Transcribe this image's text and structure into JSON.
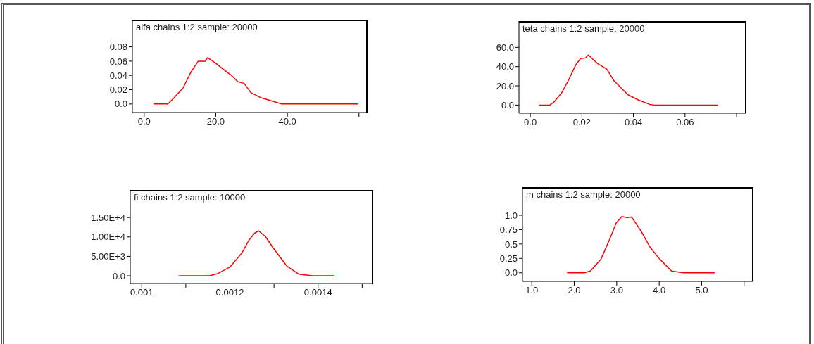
{
  "chart_data": [
    {
      "type": "line",
      "title": "alfa chains 1:2 sample: 20000",
      "color": "#ff0000",
      "x": [
        2.6,
        6.6,
        8.2,
        10.8,
        13.1,
        15.1,
        17.1,
        17.7,
        20.0,
        22.0,
        24.6,
        26.2,
        27.9,
        29.8,
        32.5,
        35.8,
        38.4,
        59.7
      ],
      "values": [
        0,
        0,
        0.008,
        0.022,
        0.045,
        0.06,
        0.06,
        0.065,
        0.057,
        0.049,
        0.039,
        0.031,
        0.029,
        0.016,
        0.009,
        0.004,
        0,
        0
      ],
      "xlim": [
        -3.3,
        62.4
      ],
      "xticks": [
        {
          "value": 0,
          "label": "0.0"
        },
        {
          "value": 20,
          "label": "20.0"
        },
        {
          "value": 40,
          "label": "40.0"
        },
        {
          "value": 60,
          "label": null
        }
      ],
      "ylim": [
        -0.012,
        0.118
      ],
      "yticks": [
        {
          "value": 0,
          "label": "0.0"
        },
        0.02,
        0.04,
        0.06,
        0.08
      ]
    },
    {
      "type": "line",
      "title": "teta chains 1:2 sample: 20000",
      "color": "#ff0000",
      "x": [
        0.0034,
        0.0076,
        0.0094,
        0.0122,
        0.0149,
        0.0177,
        0.0195,
        0.0214,
        0.0225,
        0.026,
        0.0297,
        0.0325,
        0.0361,
        0.038,
        0.0417,
        0.0463,
        0.0481,
        0.0726
      ],
      "values": [
        0,
        0,
        3.7,
        12.9,
        26.4,
        42.2,
        48.3,
        49,
        52,
        43.4,
        37.3,
        25.1,
        15.4,
        10.5,
        5.6,
        0.7,
        0,
        0
      ],
      "xlim": [
        -0.0044,
        0.0838
      ],
      "xticks": [
        {
          "value": 0,
          "label": "0.0"
        },
        0.02,
        0.04,
        0.06,
        {
          "value": 0.08,
          "label": null
        }
      ],
      "ylim": [
        -8.5,
        87.3
      ],
      "yticks": [
        {
          "value": 0,
          "label": "0.0"
        },
        {
          "value": 20,
          "label": "20.0"
        },
        {
          "value": 40,
          "label": "40.0"
        },
        {
          "value": 60,
          "label": "60.0"
        }
      ]
    },
    {
      "type": "line",
      "title": "fi chains 1:2 sample: 10000",
      "color": "#ff0000",
      "x": [
        0.001084,
        0.001154,
        0.001173,
        0.0012,
        0.001227,
        0.001243,
        0.001256,
        0.001265,
        0.001281,
        0.001297,
        0.001313,
        0.001329,
        0.001356,
        0.001388,
        0.001437
      ],
      "values": [
        0,
        0,
        600,
        2230,
        5840,
        9150,
        10960,
        11560,
        10050,
        7340,
        4940,
        2530,
        420,
        0,
        0
      ],
      "xlim": [
        0.000974,
        0.001525
      ],
      "xticks": [
        0.001,
        {
          "value": 0.0011,
          "label": null
        },
        0.0012,
        {
          "value": 0.0013,
          "label": null
        },
        0.0014,
        {
          "value": 0.0015,
          "label": null
        }
      ],
      "ylim": [
        -1990,
        22100
      ],
      "yticks": [
        {
          "value": 0,
          "label": "0.0"
        },
        {
          "value": 5000,
          "label": "5.00E+3"
        },
        {
          "value": 10000,
          "label": "1.00E+4"
        },
        {
          "value": 15000,
          "label": "1.50E+4"
        }
      ]
    },
    {
      "type": "line",
      "title": "m chains 1:2 sample: 20000",
      "color": "#ff0000",
      "x": [
        1.83,
        2.24,
        2.38,
        2.63,
        2.82,
        2.99,
        3.12,
        3.24,
        3.35,
        3.57,
        3.79,
        4.01,
        4.29,
        4.56,
        5.31
      ],
      "values": [
        0,
        0,
        0.03,
        0.24,
        0.56,
        0.87,
        0.98,
        0.96,
        0.97,
        0.73,
        0.44,
        0.24,
        0.03,
        0,
        0
      ],
      "xlim": [
        0.78,
        6.22
      ],
      "xticks": [
        {
          "value": 1,
          "label": "1.0"
        },
        {
          "value": 2,
          "label": "2.0"
        },
        {
          "value": 3,
          "label": "3.0"
        },
        {
          "value": 4,
          "label": "4.0"
        },
        {
          "value": 5,
          "label": "5.0"
        },
        {
          "value": 6,
          "label": null
        }
      ],
      "ylim": [
        -0.15,
        1.49
      ],
      "yticks": [
        {
          "value": 0,
          "label": "0.0"
        },
        0.25,
        0.5,
        0.75,
        {
          "value": 1,
          "label": "1.0"
        }
      ]
    }
  ]
}
